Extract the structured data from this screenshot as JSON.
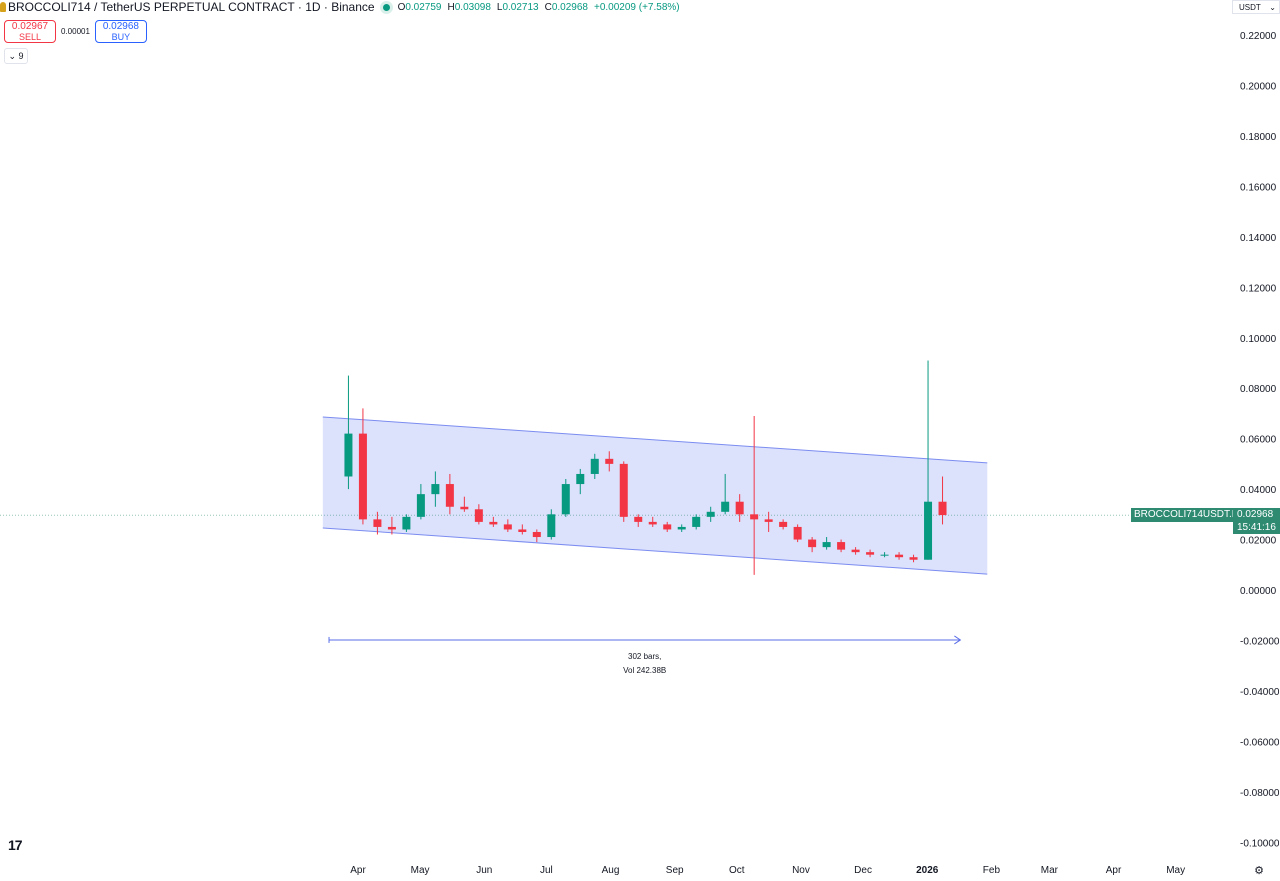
{
  "header": {
    "symbol_title": "BROCCOLI714 / TetherUS PERPETUAL CONTRACT · 1D · Binance",
    "ohlc": {
      "o_label": "O",
      "o": "0.02759",
      "h_label": "H",
      "h": "0.03098",
      "l_label": "L",
      "l": "0.02713",
      "c_label": "C",
      "c": "0.02968",
      "change": "+0.00209 (+7.58%)"
    },
    "sell": {
      "price": "0.02967",
      "label": "SELL"
    },
    "spread": "0.00001",
    "buy": {
      "price": "0.02968",
      "label": "BUY"
    },
    "indicators_toggle": "9",
    "currency": "USDT"
  },
  "price_tag": {
    "symbol": "BROCCOLI714USDT.P",
    "price": "0.02968",
    "countdown": "15:41:16"
  },
  "colors": {
    "up": "#089981",
    "down": "#f23645",
    "channel_fill": "#d6dcfb",
    "channel_line": "#7b8cf0",
    "label_bg": "#2e8b72"
  },
  "icons": {
    "logo": "tradingview-logo-icon",
    "settings": "gear-icon",
    "chevron": "chevron-down-icon"
  },
  "chart_data": {
    "type": "candlestick",
    "title": "",
    "ylim": [
      -0.1,
      0.22
    ],
    "y_ticks": [
      "0.22000",
      "0.20000",
      "0.18000",
      "0.16000",
      "0.14000",
      "0.12000",
      "0.10000",
      "0.08000",
      "0.06000",
      "0.04000",
      "0.02000",
      "0.00000",
      "-0.02000",
      "-0.04000",
      "-0.06000",
      "-0.08000",
      "-0.10000"
    ],
    "x_ticks": [
      {
        "label": "Apr",
        "date": "2025-04-01"
      },
      {
        "label": "May",
        "date": "2025-05-01"
      },
      {
        "label": "Jun",
        "date": "2025-06-01"
      },
      {
        "label": "Jul",
        "date": "2025-07-01"
      },
      {
        "label": "Aug",
        "date": "2025-08-01"
      },
      {
        "label": "Sep",
        "date": "2025-09-01"
      },
      {
        "label": "Oct",
        "date": "2025-10-01"
      },
      {
        "label": "Nov",
        "date": "2025-11-01"
      },
      {
        "label": "Dec",
        "date": "2025-12-01"
      },
      {
        "label": "2026",
        "date": "2026-01-01",
        "bold": true
      },
      {
        "label": "Feb",
        "date": "2026-02-01"
      },
      {
        "label": "Mar",
        "date": "2026-03-01"
      },
      {
        "label": "Apr",
        "date": "2026-04-01"
      },
      {
        "label": "May",
        "date": "2026-05-01"
      }
    ],
    "last_price": 0.02968,
    "candles_columns": [
      "date",
      "open",
      "high",
      "low",
      "close"
    ],
    "candles": [
      [
        "2025-03-24",
        0.045,
        0.085,
        0.04,
        0.062
      ],
      [
        "2025-03-31",
        0.062,
        0.072,
        0.026,
        0.028
      ],
      [
        "2025-04-07",
        0.028,
        0.031,
        0.022,
        0.025
      ],
      [
        "2025-04-14",
        0.025,
        0.029,
        0.022,
        0.024
      ],
      [
        "2025-04-21",
        0.024,
        0.03,
        0.023,
        0.029
      ],
      [
        "2025-04-28",
        0.029,
        0.042,
        0.028,
        0.038
      ],
      [
        "2025-05-05",
        0.038,
        0.047,
        0.033,
        0.042
      ],
      [
        "2025-05-12",
        0.042,
        0.046,
        0.03,
        0.033
      ],
      [
        "2025-05-19",
        0.033,
        0.037,
        0.031,
        0.032
      ],
      [
        "2025-05-26",
        0.032,
        0.034,
        0.026,
        0.027
      ],
      [
        "2025-06-02",
        0.027,
        0.029,
        0.025,
        0.026
      ],
      [
        "2025-06-09",
        0.026,
        0.028,
        0.023,
        0.024
      ],
      [
        "2025-06-16",
        0.024,
        0.026,
        0.022,
        0.023
      ],
      [
        "2025-06-23",
        0.023,
        0.024,
        0.019,
        0.021
      ],
      [
        "2025-06-30",
        0.021,
        0.032,
        0.02,
        0.03
      ],
      [
        "2025-07-07",
        0.03,
        0.044,
        0.029,
        0.042
      ],
      [
        "2025-07-14",
        0.042,
        0.048,
        0.038,
        0.046
      ],
      [
        "2025-07-21",
        0.046,
        0.054,
        0.044,
        0.052
      ],
      [
        "2025-07-28",
        0.052,
        0.055,
        0.047,
        0.05
      ],
      [
        "2025-08-04",
        0.05,
        0.051,
        0.027,
        0.029
      ],
      [
        "2025-08-11",
        0.029,
        0.03,
        0.025,
        0.027
      ],
      [
        "2025-08-18",
        0.027,
        0.029,
        0.025,
        0.026
      ],
      [
        "2025-08-25",
        0.026,
        0.027,
        0.023,
        0.024
      ],
      [
        "2025-09-01",
        0.024,
        0.026,
        0.023,
        0.025
      ],
      [
        "2025-09-08",
        0.025,
        0.03,
        0.024,
        0.029
      ],
      [
        "2025-09-15",
        0.029,
        0.033,
        0.027,
        0.031
      ],
      [
        "2025-09-22",
        0.031,
        0.046,
        0.03,
        0.035
      ],
      [
        "2025-09-29",
        0.035,
        0.038,
        0.027,
        0.03
      ],
      [
        "2025-10-06",
        0.03,
        0.069,
        0.006,
        0.028
      ],
      [
        "2025-10-13",
        0.028,
        0.031,
        0.023,
        0.027
      ],
      [
        "2025-10-20",
        0.027,
        0.028,
        0.024,
        0.025
      ],
      [
        "2025-10-27",
        0.025,
        0.026,
        0.019,
        0.02
      ],
      [
        "2025-11-03",
        0.02,
        0.021,
        0.015,
        0.017
      ],
      [
        "2025-11-10",
        0.017,
        0.021,
        0.016,
        0.019
      ],
      [
        "2025-11-17",
        0.019,
        0.02,
        0.015,
        0.016
      ],
      [
        "2025-11-24",
        0.016,
        0.017,
        0.014,
        0.015
      ],
      [
        "2025-12-01",
        0.015,
        0.016,
        0.013,
        0.014
      ],
      [
        "2025-12-08",
        0.014,
        0.015,
        0.013,
        0.014
      ],
      [
        "2025-12-15",
        0.014,
        0.015,
        0.012,
        0.013
      ],
      [
        "2025-12-22",
        0.013,
        0.014,
        0.011,
        0.012
      ],
      [
        "2025-12-29",
        0.012,
        0.091,
        0.012,
        0.035
      ],
      [
        "2026-01-05",
        0.035,
        0.045,
        0.026,
        0.0297
      ]
    ],
    "channel": {
      "upper": [
        [
          "2025-03-15",
          0.0686
        ],
        [
          "2026-01-30",
          0.0504
        ]
      ],
      "lower": [
        [
          "2025-03-15",
          0.0246
        ],
        [
          "2026-01-30",
          0.0063
        ]
      ]
    },
    "measure": {
      "from": [
        "2025-03-18",
        -0.0198
      ],
      "to": [
        "2026-01-17",
        -0.0198
      ],
      "label_bars": "302 bars,",
      "label_vol": "Vol 242.38B"
    }
  }
}
